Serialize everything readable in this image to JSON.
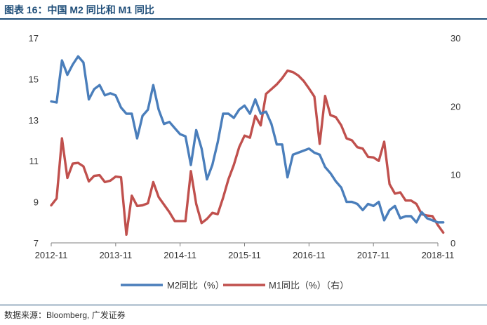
{
  "header": {
    "title": "图表 16：中国 M2 同比和 M1 同比"
  },
  "footer": {
    "source": "数据来源：Bloomberg, 广发证券"
  },
  "chart_data": {
    "type": "line",
    "title": "图表 16：中国 M2 同比和 M1 同比",
    "x_ticks": [
      "2012-11",
      "2013-11",
      "2014-11",
      "2015-11",
      "2016-11",
      "2017-11",
      "2018-11"
    ],
    "left_axis": {
      "ylim": [
        7,
        17
      ],
      "ticks": [
        "7",
        "9",
        "11",
        "13",
        "15",
        "17"
      ]
    },
    "right_axis": {
      "ylim": [
        0,
        30
      ],
      "ticks": [
        "0",
        "10",
        "20",
        "30"
      ]
    },
    "grid": false,
    "legend_position": "bottom",
    "series": [
      {
        "name": "M2同比（%）",
        "axis": "left",
        "color": "#4a7ebb",
        "start": "2012-11",
        "values": [
          13.9,
          13.85,
          15.9,
          15.2,
          15.7,
          16.1,
          15.8,
          14.0,
          14.5,
          14.7,
          14.2,
          14.3,
          14.2,
          13.6,
          13.3,
          13.3,
          12.1,
          13.2,
          13.5,
          14.7,
          13.5,
          12.8,
          12.9,
          12.6,
          12.3,
          12.2,
          10.8,
          12.5,
          11.6,
          10.1,
          10.8,
          11.9,
          13.3,
          13.3,
          13.1,
          13.5,
          13.7,
          13.3,
          14.0,
          13.3,
          13.4,
          12.8,
          11.8,
          11.8,
          10.2,
          11.3,
          11.4,
          11.5,
          11.6,
          11.4,
          11.3,
          10.7,
          10.4,
          10.0,
          9.7,
          9.0,
          9.0,
          8.9,
          8.6,
          8.9,
          8.8,
          9.0,
          8.1,
          8.6,
          8.8,
          8.2,
          8.3,
          8.3,
          8.0,
          8.5,
          8.2,
          8.1,
          8.0,
          8.0
        ]
      },
      {
        "name": "M1同比（%）（右）",
        "axis": "right",
        "color": "#c0504d",
        "start": "2012-11",
        "values": [
          5.5,
          6.5,
          15.3,
          9.5,
          11.6,
          11.7,
          11.2,
          9.0,
          9.8,
          9.9,
          8.9,
          9.1,
          9.7,
          9.6,
          1.2,
          6.9,
          5.4,
          5.5,
          5.8,
          8.9,
          6.7,
          5.6,
          4.5,
          3.2,
          3.2,
          3.2,
          10.5,
          5.7,
          2.9,
          3.5,
          4.4,
          4.2,
          6.6,
          9.3,
          11.4,
          14.0,
          15.7,
          15.4,
          18.6,
          17.2,
          21.8,
          22.5,
          23.2,
          24.1,
          25.2,
          25.0,
          24.5,
          23.7,
          22.6,
          21.4,
          14.5,
          21.5,
          18.7,
          18.4,
          17.2,
          15.3,
          15.0,
          14.0,
          13.8,
          12.6,
          12.5,
          12.0,
          14.8,
          8.6,
          7.2,
          7.4,
          6.2,
          6.2,
          5.7,
          4.2,
          4.0,
          3.9,
          2.6,
          1.5
        ]
      }
    ]
  }
}
